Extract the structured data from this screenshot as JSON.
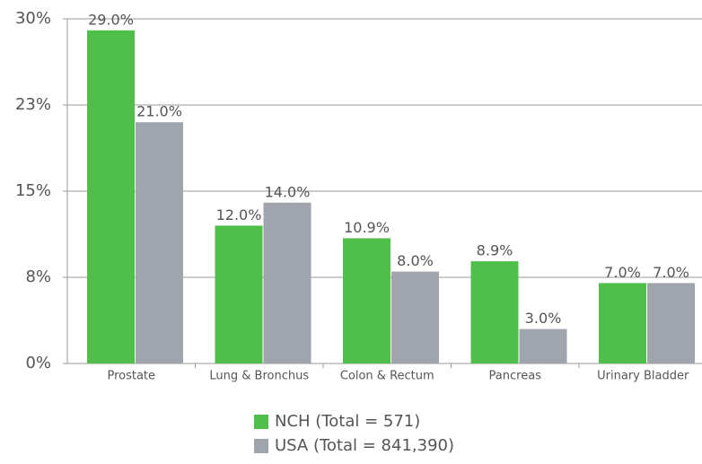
{
  "chart_data": {
    "type": "bar",
    "categories": [
      "Prostate",
      "Lung & Bronchus",
      "Colon & Rectum",
      "Pancreas",
      "Urinary Bladder"
    ],
    "series": [
      {
        "name": "NCH (Total = 571)",
        "color": "#4fbf4a",
        "values": [
          29.0,
          12.0,
          10.9,
          8.9,
          7.0
        ],
        "value_labels": [
          "29.0%",
          "12.0%",
          "10.9%",
          "8.9%",
          "7.0%"
        ]
      },
      {
        "name": "USA (Total = 841,390)",
        "color": "#a0a4ac",
        "values": [
          21.0,
          14.0,
          8.0,
          3.0,
          7.0
        ],
        "value_labels": [
          "21.0%",
          "14.0%",
          "8.0%",
          "3.0%",
          "7.0%"
        ]
      }
    ],
    "ylim": [
      0,
      30
    ],
    "yticks": [
      {
        "value": 0,
        "label": "0%"
      },
      {
        "value": 7.5,
        "label": "8%"
      },
      {
        "value": 15,
        "label": "15%"
      },
      {
        "value": 22.5,
        "label": "23%"
      },
      {
        "value": 30,
        "label": "30%"
      }
    ],
    "grid": true
  }
}
